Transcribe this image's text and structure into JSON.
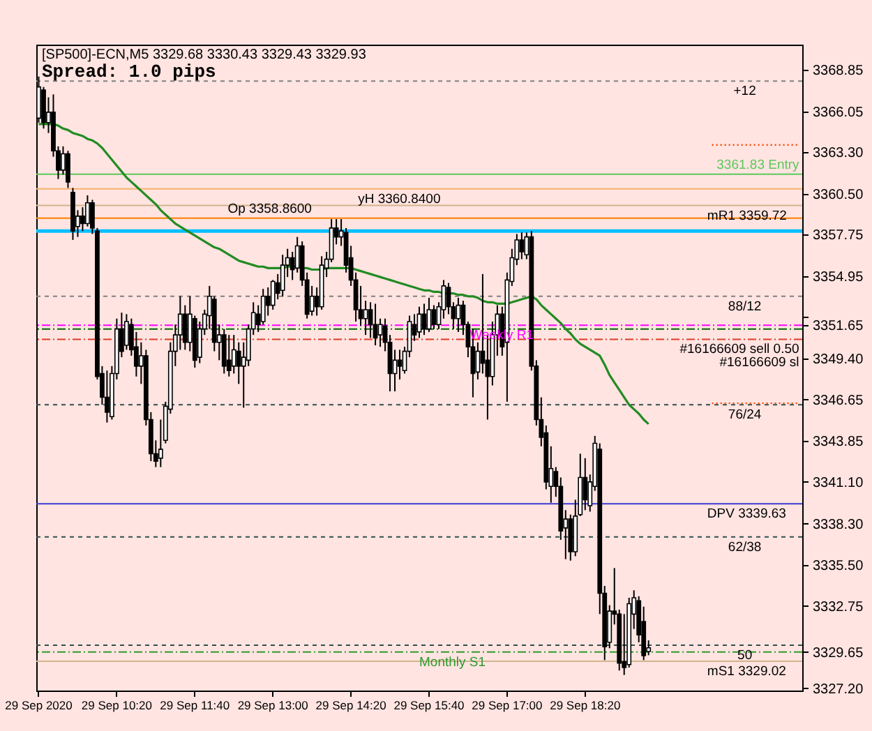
{
  "chart_data": {
    "type": "candlestick",
    "title": "[SP500]-ECN,M5 3329.68 3330.43 3329.43 3329.93",
    "subtitle": "Spread: 1.0 pips",
    "categories": [
      "29 Sep 2020",
      null,
      null,
      null,
      null,
      null,
      null,
      null,
      null,
      null,
      null,
      null,
      null,
      null,
      null,
      null,
      "29 Sep 10:20",
      null,
      null,
      null,
      null,
      null,
      null,
      null,
      null,
      null,
      null,
      null,
      null,
      null,
      null,
      null,
      "29 Sep 11:40",
      null,
      null,
      null,
      null,
      null,
      null,
      null,
      null,
      null,
      null,
      null,
      null,
      null,
      null,
      null,
      "29 Sep 13:00",
      null,
      null,
      null,
      null,
      null,
      null,
      null,
      null,
      null,
      null,
      null,
      null,
      null,
      null,
      null,
      "29 Sep 14:20",
      null,
      null,
      null,
      null,
      null,
      null,
      null,
      null,
      null,
      null,
      null,
      null,
      null,
      null,
      null,
      "29 Sep 15:40",
      null,
      null,
      null,
      null,
      null,
      null,
      null,
      null,
      null,
      null,
      null,
      null,
      null,
      null,
      null,
      "29 Sep 17:00",
      null,
      null,
      null,
      null,
      null,
      null,
      null,
      null,
      null,
      null,
      null,
      null,
      null,
      null,
      null,
      "29 Sep 18:20",
      null,
      null,
      null,
      null,
      null,
      null,
      null,
      null,
      null,
      null,
      null,
      null,
      null,
      null,
      null,
      null,
      null,
      null,
      null,
      null,
      null,
      null,
      null,
      null,
      null,
      null,
      null,
      null,
      null,
      null,
      null,
      null,
      null,
      null,
      null,
      null,
      null,
      null,
      null,
      null,
      null,
      null,
      null,
      null
    ],
    "ohlc": [
      [
        3365.6,
        3368.4,
        3365.3,
        3367.7
      ],
      [
        3367.5,
        3367.7,
        3364.9,
        3365.3
      ],
      [
        3365.3,
        3367.0,
        3364.6,
        3366.0
      ],
      [
        3366.0,
        3367.2,
        3363.0,
        3363.4
      ],
      [
        3363.4,
        3363.7,
        3361.5,
        3362.1
      ],
      [
        3362.1,
        3363.7,
        3361.8,
        3363.2
      ],
      [
        3363.2,
        3363.4,
        3360.9,
        3361.3
      ],
      [
        3360.6,
        3360.9,
        3357.4,
        3358.0
      ],
      [
        3358.3,
        3359.4,
        3357.6,
        3359.0
      ],
      [
        3359.0,
        3359.6,
        3358.0,
        3358.5
      ],
      [
        3358.5,
        3360.4,
        3358.3,
        3359.9
      ],
      [
        3359.9,
        3360.1,
        3357.8,
        3358.2
      ],
      [
        3358.0,
        3358.2,
        3348.0,
        3348.2
      ],
      [
        3348.4,
        3348.9,
        3346.3,
        3346.8
      ],
      [
        3346.8,
        3348.6,
        3345.1,
        3345.8
      ],
      [
        3345.5,
        3348.9,
        3345.3,
        3348.4
      ],
      [
        3348.4,
        3352.1,
        3348.0,
        3351.4
      ],
      [
        3351.4,
        3352.5,
        3349.5,
        3349.9
      ],
      [
        3350.3,
        3352.4,
        3350.0,
        3351.9
      ],
      [
        3351.7,
        3352.1,
        3349.6,
        3350.0
      ],
      [
        3350.2,
        3351.2,
        3348.2,
        3348.9
      ],
      [
        3348.9,
        3350.5,
        3347.7,
        3349.6
      ],
      [
        3349.6,
        3350.0,
        3344.9,
        3345.3
      ],
      [
        3345.3,
        3345.8,
        3342.5,
        3343.0
      ],
      [
        3343.0,
        3343.9,
        3342.1,
        3342.5
      ],
      [
        3342.7,
        3345.3,
        3342.1,
        3343.3
      ],
      [
        3343.9,
        3346.5,
        3343.7,
        3346.2
      ],
      [
        3346.0,
        3350.5,
        3345.7,
        3349.9
      ],
      [
        3349.9,
        3351.7,
        3348.9,
        3351.0
      ],
      [
        3351.0,
        3353.6,
        3350.0,
        3352.4
      ],
      [
        3352.4,
        3353.0,
        3350.0,
        3350.5
      ],
      [
        3350.5,
        3353.6,
        3349.9,
        3352.4
      ],
      [
        3352.1,
        3352.3,
        3348.8,
        3349.3
      ],
      [
        3349.5,
        3351.9,
        3349.1,
        3351.4
      ],
      [
        3351.4,
        3352.7,
        3351.0,
        3352.4
      ],
      [
        3352.3,
        3354.3,
        3351.4,
        3353.6
      ],
      [
        3353.4,
        3353.6,
        3349.9,
        3350.5
      ],
      [
        3350.5,
        3351.7,
        3349.3,
        3351.0
      ],
      [
        3351.0,
        3351.4,
        3348.4,
        3348.9
      ],
      [
        3349.3,
        3351.0,
        3348.2,
        3348.6
      ],
      [
        3348.9,
        3351.0,
        3348.4,
        3350.0
      ],
      [
        3349.9,
        3350.5,
        3347.7,
        3348.9
      ],
      [
        3348.9,
        3350.5,
        3346.1,
        3349.5
      ],
      [
        3349.3,
        3351.7,
        3348.9,
        3351.4
      ],
      [
        3351.4,
        3353.2,
        3351.0,
        3352.5
      ],
      [
        3352.4,
        3353.0,
        3351.2,
        3351.7
      ],
      [
        3351.9,
        3354.1,
        3351.7,
        3353.6
      ],
      [
        3353.6,
        3354.2,
        3352.3,
        3353.0
      ],
      [
        3353.0,
        3354.7,
        3352.7,
        3354.6
      ],
      [
        3354.5,
        3355.1,
        3353.4,
        3353.8
      ],
      [
        3354.0,
        3356.4,
        3353.6,
        3355.7
      ],
      [
        3355.7,
        3356.8,
        3354.9,
        3356.2
      ],
      [
        3356.2,
        3356.6,
        3354.7,
        3355.4
      ],
      [
        3355.5,
        3357.6,
        3355.2,
        3357.0
      ],
      [
        3357.0,
        3357.3,
        3354.3,
        3354.7
      ],
      [
        3354.7,
        3355.2,
        3352.1,
        3352.4
      ],
      [
        3352.6,
        3354.3,
        3352.3,
        3353.6
      ],
      [
        3353.6,
        3354.2,
        3352.3,
        3352.9
      ],
      [
        3352.9,
        3356.3,
        3352.7,
        3355.7
      ],
      [
        3355.5,
        3356.6,
        3354.9,
        3356.1
      ],
      [
        3356.1,
        3358.8,
        3355.9,
        3358.2
      ],
      [
        3358.2,
        3358.8,
        3357.1,
        3357.6
      ],
      [
        3357.6,
        3358.8,
        3357.0,
        3358.0
      ],
      [
        3357.9,
        3358.2,
        3355.2,
        3355.7
      ],
      [
        3356.2,
        3357.0,
        3354.3,
        3354.7
      ],
      [
        3354.7,
        3355.2,
        3351.9,
        3352.7
      ],
      [
        3352.7,
        3354.3,
        3351.6,
        3352.1
      ],
      [
        3352.1,
        3353.3,
        3351.0,
        3352.7
      ],
      [
        3352.7,
        3353.2,
        3350.8,
        3351.7
      ],
      [
        3351.7,
        3353.1,
        3350.3,
        3350.8
      ],
      [
        3351.0,
        3352.1,
        3350.2,
        3351.7
      ],
      [
        3351.6,
        3352.1,
        3349.9,
        3350.5
      ],
      [
        3350.5,
        3351.0,
        3347.2,
        3348.4
      ],
      [
        3348.4,
        3350.0,
        3347.2,
        3349.3
      ],
      [
        3349.3,
        3350.0,
        3348.0,
        3348.9
      ],
      [
        3348.6,
        3350.2,
        3348.4,
        3349.9
      ],
      [
        3349.9,
        3352.3,
        3349.5,
        3351.9
      ],
      [
        3351.7,
        3352.4,
        3350.6,
        3351.0
      ],
      [
        3351.2,
        3352.9,
        3350.8,
        3352.4
      ],
      [
        3352.4,
        3353.1,
        3351.0,
        3351.4
      ],
      [
        3351.4,
        3353.5,
        3351.2,
        3352.7
      ],
      [
        3352.7,
        3353.0,
        3351.4,
        3351.7
      ],
      [
        3351.7,
        3353.2,
        3351.4,
        3352.9
      ],
      [
        3352.7,
        3354.7,
        3352.1,
        3354.3
      ],
      [
        3354.2,
        3354.5,
        3352.4,
        3352.9
      ],
      [
        3352.9,
        3353.2,
        3351.4,
        3352.1
      ],
      [
        3352.1,
        3353.5,
        3351.2,
        3353.0
      ],
      [
        3353.0,
        3353.3,
        3351.0,
        3351.7
      ],
      [
        3351.7,
        3351.9,
        3349.5,
        3350.2
      ],
      [
        3350.2,
        3351.4,
        3346.8,
        3348.4
      ],
      [
        3348.5,
        3350.5,
        3348.0,
        3349.9
      ],
      [
        3349.9,
        3355.1,
        3348.4,
        3349.1
      ],
      [
        3349.3,
        3351.0,
        3345.3,
        3348.2
      ],
      [
        3348.2,
        3351.9,
        3347.6,
        3351.0
      ],
      [
        3351.0,
        3353.0,
        3349.6,
        3352.4
      ],
      [
        3352.4,
        3352.9,
        3349.6,
        3350.2
      ],
      [
        3350.5,
        3355.2,
        3346.5,
        3354.7
      ],
      [
        3354.6,
        3356.8,
        3354.3,
        3356.2
      ],
      [
        3356.1,
        3357.8,
        3355.7,
        3357.4
      ],
      [
        3357.4,
        3357.9,
        3356.1,
        3356.6
      ],
      [
        3356.4,
        3357.9,
        3356.1,
        3357.6
      ],
      [
        3357.6,
        3358.0,
        3348.6,
        3348.9
      ],
      [
        3348.9,
        3349.3,
        3344.9,
        3345.3
      ],
      [
        3345.3,
        3346.8,
        3343.5,
        3344.1
      ],
      [
        3344.4,
        3344.9,
        3340.6,
        3341.1
      ],
      [
        3340.8,
        3343.5,
        3339.7,
        3342.0
      ],
      [
        3341.8,
        3342.1,
        3340.1,
        3340.8
      ],
      [
        3340.8,
        3341.4,
        3337.2,
        3337.8
      ],
      [
        3338.0,
        3339.2,
        3335.9,
        3338.6
      ],
      [
        3338.6,
        3338.9,
        3335.8,
        3336.4
      ],
      [
        3336.4,
        3339.9,
        3336.1,
        3338.8
      ],
      [
        3338.9,
        3343.0,
        3338.8,
        3341.4
      ],
      [
        3341.4,
        3342.7,
        3339.2,
        3339.9
      ],
      [
        3339.5,
        3341.6,
        3339.1,
        3341.1
      ],
      [
        3340.8,
        3344.2,
        3340.5,
        3343.7
      ],
      [
        3343.3,
        3343.7,
        3332.2,
        3333.6
      ],
      [
        3333.6,
        3334.1,
        3329.1,
        3330.0
      ],
      [
        3330.3,
        3332.8,
        3329.9,
        3332.4
      ],
      [
        3332.4,
        3335.3,
        3331.5,
        3332.2
      ],
      [
        3332.2,
        3332.5,
        3328.4,
        3328.9
      ],
      [
        3329.0,
        3332.2,
        3328.1,
        3328.6
      ],
      [
        3328.8,
        3333.3,
        3328.6,
        3332.9
      ],
      [
        3332.2,
        3333.8,
        3331.2,
        3333.3
      ],
      [
        3333.1,
        3333.4,
        3330.3,
        3330.8
      ],
      [
        3331.7,
        3332.7,
        3329.1,
        3329.4
      ],
      [
        3329.68,
        3330.43,
        3329.43,
        3329.93
      ],
      null,
      null,
      null,
      null,
      null,
      null,
      null,
      null,
      null,
      null,
      null,
      null,
      null,
      null,
      null,
      null,
      null,
      null,
      null,
      null,
      null,
      null,
      null,
      null,
      null,
      null,
      null,
      null,
      null,
      null,
      null
    ],
    "colors": [
      "#ffffff",
      "#000000",
      "#ffffff",
      "#000000",
      "#000000",
      "#ffffff",
      "#000000",
      "#000000",
      "#ffffff",
      "#000000",
      "#ffffff",
      "#000000",
      "#000000",
      "#000000",
      "#000000",
      "#ffffff",
      "#ffffff",
      "#000000",
      "#ffffff",
      "#000000",
      "#000000",
      "#ffffff",
      "#000000",
      "#000000",
      "#000000",
      "#ffffff",
      "#ffffff",
      "#ffffff",
      "#ffffff",
      "#ffffff",
      "#000000",
      "#ffffff",
      "#000000",
      "#ffffff",
      "#ffffff",
      "#ffffff",
      "#000000",
      "#ffffff",
      "#000000",
      "#000000",
      "#ffffff",
      "#000000",
      "#ffffff",
      "#ffffff",
      "#ffffff",
      "#000000",
      "#ffffff",
      "#000000",
      "#ffffff",
      "#000000",
      "#ffffff",
      "#ffffff",
      "#000000",
      "#ffffff",
      "#000000",
      "#000000",
      "#ffffff",
      "#000000",
      "#ffffff",
      "#ffffff",
      "#ffffff",
      "#000000",
      "#ffffff",
      "#000000",
      "#000000",
      "#000000",
      "#000000",
      "#ffffff",
      "#000000",
      "#000000",
      "#ffffff",
      "#000000",
      "#000000",
      "#ffffff",
      "#000000",
      "#ffffff",
      "#ffffff",
      "#000000",
      "#ffffff",
      "#000000",
      "#ffffff",
      "#000000",
      "#ffffff",
      "#ffffff",
      "#000000",
      "#000000",
      "#ffffff",
      "#000000",
      "#000000",
      "#000000",
      "#ffffff",
      "#000000",
      "#000000",
      "#ffffff",
      "#ffffff",
      "#000000",
      "#ffffff",
      "#ffffff",
      "#ffffff",
      "#000000",
      "#ffffff",
      "#000000",
      "#000000",
      "#000000",
      "#000000",
      "#ffffff",
      "#000000",
      "#000000",
      "#ffffff",
      "#000000",
      "#ffffff",
      "#ffffff",
      "#000000",
      "#ffffff",
      "#ffffff",
      "#000000",
      "#000000",
      "#ffffff",
      "#000000",
      "#000000",
      "#000000",
      "#ffffff",
      "#ffffff",
      "#000000",
      "#000000",
      "#ffffff",
      null,
      null,
      null,
      null,
      null,
      null,
      null,
      null,
      null,
      null,
      null,
      null,
      null,
      null,
      null,
      null,
      null,
      null,
      null,
      null,
      null,
      null,
      null,
      null,
      null,
      null,
      null,
      null,
      null,
      null,
      null
    ],
    "series": [
      {
        "type": "line",
        "color": "#228b22",
        "values": [
          3365.2,
          3365.2,
          3365.2,
          3365.2,
          3365.1,
          3364.9,
          3364.8,
          3364.6,
          3364.5,
          3364.4,
          3364.2,
          3364.1,
          3363.9,
          3363.6,
          3363.2,
          3362.8,
          3362.4,
          3362.0,
          3361.6,
          3361.3,
          3361.0,
          3360.7,
          3360.4,
          3360.1,
          3359.8,
          3359.4,
          3359.1,
          3358.8,
          3358.5,
          3358.3,
          3358.1,
          3357.9,
          3357.7,
          3357.5,
          3357.3,
          3357.1,
          3356.9,
          3356.8,
          3356.6,
          3356.4,
          3356.2,
          3356.0,
          3355.9,
          3355.8,
          3355.7,
          3355.6,
          3355.6,
          3355.5,
          3355.5,
          3355.5,
          3355.5,
          3355.6,
          3355.6,
          3355.6,
          3355.5,
          3355.5,
          3355.4,
          3355.4,
          3355.4,
          3355.5,
          3355.5,
          3355.5,
          3355.5,
          3355.5,
          3355.5,
          3355.4,
          3355.3,
          3355.2,
          3355.1,
          3355.0,
          3354.9,
          3354.8,
          3354.7,
          3354.6,
          3354.5,
          3354.4,
          3354.3,
          3354.2,
          3354.1,
          3354.0,
          3354.0,
          3353.9,
          3353.9,
          3353.8,
          3353.8,
          3353.8,
          3353.7,
          3353.7,
          3353.6,
          3353.6,
          3353.5,
          3353.3,
          3353.2,
          3353.2,
          3353.1,
          3353.1,
          3353.1,
          3353.2,
          3353.3,
          3353.4,
          3353.5,
          3353.6,
          3353.4,
          3353.0,
          3352.7,
          3352.4,
          3352.1,
          3351.8,
          3351.4,
          3351.1,
          3350.7,
          3350.4,
          3350.2,
          3350.0,
          3349.8,
          3349.6,
          3349.0,
          3348.3,
          3347.8,
          3347.3,
          3346.8,
          3346.3,
          3346.0,
          3345.7,
          3345.3,
          3345.0,
          null,
          null,
          null,
          null,
          null,
          null,
          null,
          null,
          null,
          null,
          null,
          null,
          null,
          null,
          null,
          null,
          null,
          null,
          null,
          null,
          null,
          null,
          null,
          null,
          null,
          null,
          null,
          null,
          null,
          null,
          null
        ]
      },
      {
        "type": "line",
        "color": "#ff4500",
        "line_style": "dotted",
        "values": [
          null,
          null,
          null,
          null,
          null,
          null,
          null,
          null,
          null,
          null,
          null,
          null,
          null,
          null,
          null,
          null,
          null,
          null,
          null,
          null,
          null,
          null,
          null,
          null,
          null,
          null,
          null,
          null,
          null,
          null,
          null,
          null,
          null,
          null,
          null,
          null,
          null,
          null,
          null,
          null,
          null,
          null,
          null,
          null,
          null,
          null,
          null,
          null,
          null,
          null,
          null,
          null,
          null,
          null,
          null,
          null,
          null,
          null,
          null,
          null,
          null,
          null,
          null,
          null,
          null,
          null,
          null,
          null,
          null,
          null,
          null,
          null,
          null,
          null,
          null,
          null,
          null,
          null,
          null,
          null,
          null,
          null,
          null,
          null,
          null,
          null,
          null,
          null,
          null,
          null,
          null,
          null,
          null,
          null,
          null,
          null,
          null,
          null,
          null,
          null,
          null,
          null,
          null,
          null,
          null,
          null,
          null,
          null,
          null,
          null,
          null,
          null,
          null,
          null,
          null,
          null,
          null,
          null,
          null,
          null,
          null,
          null,
          null,
          null,
          null,
          null,
          null,
          null,
          null,
          null,
          null,
          null,
          null,
          null,
          null,
          null,
          null,
          null,
          3363.8,
          3363.8,
          3363.8,
          3363.8,
          3363.8,
          3363.8,
          3363.8,
          3363.8,
          3363.8,
          3363.8,
          3363.8,
          3363.8,
          3363.8,
          3363.8,
          3363.8,
          3363.8,
          3363.8,
          3363.8,
          3363.8
        ]
      },
      {
        "type": "line",
        "color": "#ff4500",
        "line_style": "dotted",
        "values": [
          null,
          null,
          null,
          null,
          null,
          null,
          null,
          null,
          null,
          null,
          null,
          null,
          null,
          null,
          null,
          null,
          null,
          null,
          null,
          null,
          null,
          null,
          null,
          null,
          null,
          null,
          null,
          null,
          null,
          null,
          null,
          null,
          null,
          null,
          null,
          null,
          null,
          null,
          null,
          null,
          null,
          null,
          null,
          null,
          null,
          null,
          null,
          null,
          null,
          null,
          null,
          null,
          null,
          null,
          null,
          null,
          null,
          null,
          null,
          null,
          null,
          null,
          null,
          null,
          null,
          null,
          null,
          null,
          null,
          null,
          null,
          null,
          null,
          null,
          null,
          null,
          null,
          null,
          null,
          null,
          null,
          null,
          null,
          null,
          null,
          null,
          null,
          null,
          null,
          null,
          null,
          null,
          null,
          null,
          null,
          null,
          null,
          null,
          null,
          null,
          null,
          null,
          null,
          null,
          null,
          null,
          null,
          null,
          null,
          null,
          null,
          null,
          null,
          null,
          null,
          null,
          null,
          null,
          null,
          null,
          null,
          null,
          null,
          null,
          null,
          null,
          null,
          null,
          null,
          null,
          null,
          null,
          null,
          null,
          null,
          null,
          null,
          null,
          3346.4,
          3346.4,
          3346.4,
          3346.4,
          3346.4,
          3346.4,
          3346.4,
          3346.4,
          3346.4,
          3346.4,
          3346.4,
          3346.4,
          3346.4,
          3346.4,
          3346.4,
          3346.4,
          3346.4,
          3346.4,
          3346.4
        ]
      }
    ],
    "ref_lines": [
      {
        "axis": "y",
        "value": 3368.1,
        "color": "#808080",
        "line_style": "dashed"
      },
      {
        "axis": "y",
        "value": 3361.83,
        "label": "3361.83 Entry",
        "color": "#5cc85c",
        "line_style": "solid"
      },
      {
        "axis": "y",
        "value": 3360.84,
        "label": "yH 3360.8400",
        "color": "#f5b36e",
        "line_style": "solid"
      },
      {
        "axis": "y",
        "value": 3359.72,
        "label": "mR1 3359.72",
        "color": "#d2b48c",
        "line_style": "solid"
      },
      {
        "axis": "y",
        "value": 3358.86,
        "label": "Op 3358.8600",
        "color": "#ff7f00",
        "line_style": "solid"
      },
      {
        "axis": "y",
        "value": 3358.0,
        "color": "#00bfff",
        "line_style": "solid"
      },
      {
        "axis": "y",
        "value": 3353.6,
        "color": "#808080",
        "line_style": "dashed"
      },
      {
        "axis": "y",
        "value": 3351.65,
        "label": "Weekly R1",
        "color": "#ff00ff",
        "line_style": "dashdot"
      },
      {
        "axis": "y",
        "value": 3351.4,
        "label": "#16166609 sell 0.50",
        "color": "#006400",
        "line_style": "dashdot"
      },
      {
        "axis": "y",
        "value": 3350.7,
        "label": "#16166609 sl",
        "color": "#e03c28",
        "line_style": "dashdot"
      },
      {
        "axis": "y",
        "value": 3346.3,
        "color": "#2f4f4f",
        "line_style": "dashed"
      },
      {
        "axis": "y",
        "value": 3339.63,
        "label": "DPV 3339.63",
        "color": "#3c3cd2",
        "line_style": "solid"
      },
      {
        "axis": "y",
        "value": 3337.4,
        "color": "#2f4f4f",
        "line_style": "dashed"
      },
      {
        "axis": "y",
        "value": 3330.1,
        "color": "#2f4f4f",
        "line_style": "dashed"
      },
      {
        "axis": "y",
        "value": 3329.65,
        "label": "Monthly S1",
        "color": "#2e9a2e",
        "line_style": "dashdot"
      },
      {
        "axis": "y",
        "value": 3329.02,
        "label": "mS1 3329.02",
        "color": "#d2b48c",
        "line_style": "solid"
      }
    ],
    "annotations": [
      {
        "text": "+12",
        "y": 3368.1
      },
      {
        "text": "88/12",
        "y": 3353.6
      },
      {
        "text": "76/24",
        "y": 3346.3
      },
      {
        "text": "62/38",
        "y": 3337.4
      },
      {
        "text": "50",
        "y": 3330.1
      }
    ],
    "ylim": [
      3327.05,
      3370.55
    ],
    "yticks": [
      3368.85,
      3366.05,
      {
        "value": 3363.3,
        "label": "3363.30"
      },
      {
        "value": 3360.5,
        "label": "3360.50"
      },
      3357.75,
      3354.95,
      {
        "value": 3352.2,
        "label": null
      },
      3351.65,
      {
        "value": 3349.4,
        "label": "3349.40"
      },
      3346.65,
      3343.85,
      {
        "value": 3341.1,
        "label": "3341.10"
      },
      {
        "value": 3338.3,
        "label": "3338.30"
      },
      {
        "value": 3335.5,
        "label": "3335.50"
      },
      3332.75,
      3329.65,
      {
        "value": 3327.2,
        "label": "3327.20"
      }
    ],
    "grid": false
  }
}
